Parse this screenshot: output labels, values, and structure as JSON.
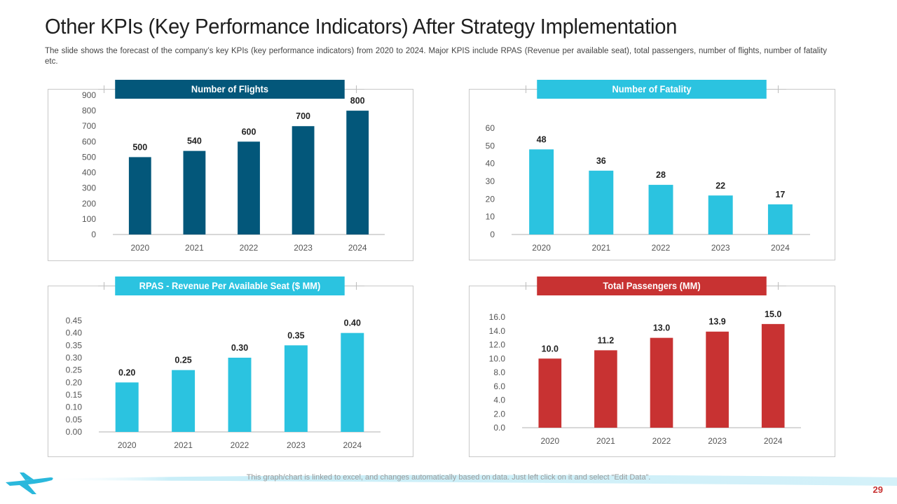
{
  "slide": {
    "title": "Other KPIs (Key Performance Indicators) After Strategy Implementation",
    "description": "The slide shows the forecast of the company’s key KPIs (key performance indicators) from 2020 to 2024. Major KPIS include RPAS (Revenue per available seat), total passengers, number of flights, number of fatality etc.",
    "footer_note": "This graph/chart is linked to excel, and changes automatically based on data. Just left click on it and select “Edit Data”.",
    "page_number": "29"
  },
  "colors": {
    "dark_blue": "#03577a",
    "light_blue": "#2bc3e0",
    "red": "#c83232",
    "axis": "#b0b0b0",
    "swoosh": "#2ab8dc"
  },
  "icons": {
    "logo": "airplane-icon"
  },
  "chart_data": [
    {
      "id": "flights",
      "type": "bar",
      "title": "Number of Flights",
      "color": "#03577a",
      "categories": [
        "2020",
        "2021",
        "2022",
        "2023",
        "2024"
      ],
      "values": [
        500,
        540,
        600,
        700,
        800
      ],
      "value_labels": [
        "500",
        "540",
        "600",
        "700",
        "800"
      ],
      "ylim": [
        0,
        900
      ],
      "yticks": [
        "0",
        "100",
        "200",
        "300",
        "400",
        "500",
        "600",
        "700",
        "800",
        "900"
      ],
      "xlabel": "",
      "ylabel": ""
    },
    {
      "id": "fatality",
      "type": "bar",
      "title": "Number of Fatality",
      "color": "#2bc3e0",
      "categories": [
        "2020",
        "2021",
        "2022",
        "2023",
        "2024"
      ],
      "values": [
        48,
        36,
        28,
        22,
        17
      ],
      "value_labels": [
        "48",
        "36",
        "28",
        "22",
        "17"
      ],
      "ylim": [
        0,
        60
      ],
      "yticks": [
        "0",
        "10",
        "20",
        "30",
        "40",
        "50",
        "60"
      ],
      "xlabel": "",
      "ylabel": ""
    },
    {
      "id": "rpas",
      "type": "bar",
      "title": "RPAS - Revenue Per Available Seat ($ MM)",
      "color": "#2bc3e0",
      "categories": [
        "2020",
        "2021",
        "2022",
        "2023",
        "2024"
      ],
      "values": [
        0.2,
        0.25,
        0.3,
        0.35,
        0.4
      ],
      "value_labels": [
        "0.20",
        "0.25",
        "0.30",
        "0.35",
        "0.40"
      ],
      "ylim": [
        0,
        0.45
      ],
      "yticks": [
        "0.00",
        "0.05",
        "0.10",
        "0.15",
        "0.20",
        "0.25",
        "0.30",
        "0.35",
        "0.40",
        "0.45"
      ],
      "xlabel": "",
      "ylabel": ""
    },
    {
      "id": "passengers",
      "type": "bar",
      "title": "Total Passengers (MM)",
      "color": "#c83232",
      "categories": [
        "2020",
        "2021",
        "2022",
        "2023",
        "2024"
      ],
      "values": [
        10.0,
        11.2,
        13.0,
        13.9,
        15.0
      ],
      "value_labels": [
        "10.0",
        "11.2",
        "13.0",
        "13.9",
        "15.0"
      ],
      "ylim": [
        0,
        16
      ],
      "yticks": [
        "0.0",
        "2.0",
        "4.0",
        "6.0",
        "8.0",
        "10.0",
        "12.0",
        "14.0",
        "16.0"
      ],
      "xlabel": "",
      "ylabel": ""
    }
  ]
}
